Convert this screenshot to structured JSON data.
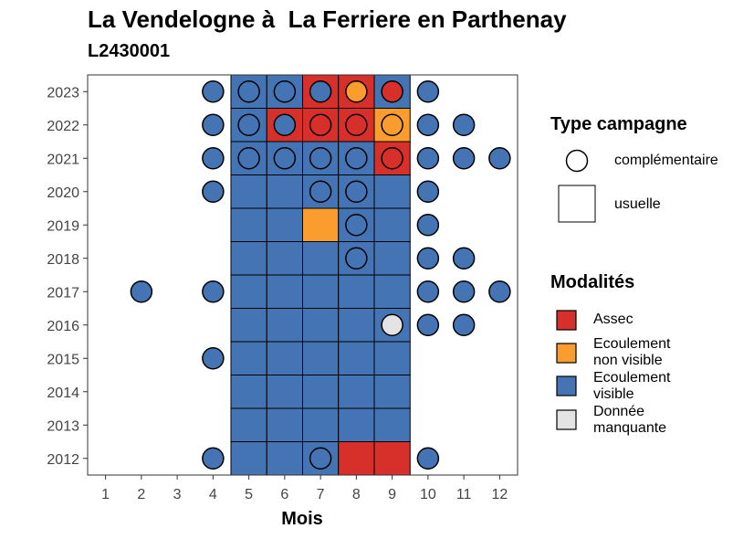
{
  "title": "La Vendelogne à  La Ferriere en Parthenay",
  "subtitle": "L2430001",
  "chart_data": {
    "type": "heatmap",
    "xlabel": "Mois",
    "ylabel": "",
    "x_ticks": [
      "1",
      "2",
      "3",
      "4",
      "5",
      "6",
      "7",
      "8",
      "9",
      "10",
      "11",
      "12"
    ],
    "y_ticks": [
      "2012",
      "2013",
      "2014",
      "2015",
      "2016",
      "2017",
      "2018",
      "2019",
      "2020",
      "2021",
      "2022",
      "2023"
    ],
    "xlim": [
      0.5,
      12.5
    ],
    "ylim": [
      2011.5,
      2023.5
    ],
    "legend_type": {
      "title": "Type campagne",
      "items": [
        {
          "key": "C",
          "label": "complémentaire",
          "shape": "circle"
        },
        {
          "key": "U",
          "label": "usuelle",
          "shape": "square"
        }
      ]
    },
    "legend_modalites": {
      "title": "Modalités",
      "items": [
        {
          "key": "A",
          "label": "Assec",
          "color": "#d7302a"
        },
        {
          "key": "N",
          "label": "Ecoulement\nnon visible",
          "color": "#fb9c2f"
        },
        {
          "key": "V",
          "label": "Ecoulement\nvisible",
          "color": "#4574b4"
        },
        {
          "key": "M",
          "label": "Donnée\nmanquante",
          "color": "#e3e3e3"
        }
      ]
    },
    "usuelle": [
      {
        "year": 2023,
        "values": {
          "5": "V",
          "6": "V",
          "7": "A",
          "8": "A",
          "9": "V"
        }
      },
      {
        "year": 2022,
        "values": {
          "5": "V",
          "6": "A",
          "7": "A",
          "8": "A",
          "9": "N"
        }
      },
      {
        "year": 2021,
        "values": {
          "5": "V",
          "6": "V",
          "7": "V",
          "8": "V",
          "9": "A"
        }
      },
      {
        "year": 2020,
        "values": {
          "5": "V",
          "6": "V",
          "7": "V",
          "8": "V",
          "9": "V"
        }
      },
      {
        "year": 2019,
        "values": {
          "5": "V",
          "6": "V",
          "7": "N",
          "8": "V",
          "9": "V"
        }
      },
      {
        "year": 2018,
        "values": {
          "5": "V",
          "6": "V",
          "7": "V",
          "8": "V",
          "9": "V"
        }
      },
      {
        "year": 2017,
        "values": {
          "5": "V",
          "6": "V",
          "7": "V",
          "8": "V",
          "9": "V"
        }
      },
      {
        "year": 2016,
        "values": {
          "5": "V",
          "6": "V",
          "7": "V",
          "8": "V",
          "9": "V"
        }
      },
      {
        "year": 2015,
        "values": {
          "5": "V",
          "6": "V",
          "7": "V",
          "8": "V",
          "9": "V"
        }
      },
      {
        "year": 2014,
        "values": {
          "5": "V",
          "6": "V",
          "7": "V",
          "8": "V",
          "9": "V"
        }
      },
      {
        "year": 2013,
        "values": {
          "5": "V",
          "6": "V",
          "7": "V",
          "8": "V",
          "9": "V"
        }
      },
      {
        "year": 2012,
        "values": {
          "5": "V",
          "6": "V",
          "7": "V",
          "8": "A",
          "9": "A"
        }
      }
    ],
    "complementaire": [
      {
        "year": 2023,
        "values": {
          "4": "V",
          "5": "V",
          "6": "V",
          "7": "V",
          "8": "N",
          "9": "A",
          "10": "V"
        }
      },
      {
        "year": 2022,
        "values": {
          "4": "V",
          "5": "V",
          "6": "V",
          "7": "A",
          "8": "A",
          "9": "N",
          "10": "V",
          "11": "V"
        }
      },
      {
        "year": 2021,
        "values": {
          "4": "V",
          "5": "V",
          "6": "V",
          "7": "V",
          "8": "V",
          "9": "A",
          "10": "V",
          "11": "V",
          "12": "V"
        }
      },
      {
        "year": 2020,
        "values": {
          "4": "V",
          "7": "V",
          "8": "V",
          "10": "V"
        }
      },
      {
        "year": 2019,
        "values": {
          "8": "V",
          "10": "V"
        }
      },
      {
        "year": 2018,
        "values": {
          "8": "V",
          "10": "V",
          "11": "V"
        }
      },
      {
        "year": 2017,
        "values": {
          "2": "V",
          "4": "V",
          "10": "V",
          "11": "V",
          "12": "V"
        }
      },
      {
        "year": 2016,
        "values": {
          "9": "M",
          "10": "V",
          "11": "V"
        }
      },
      {
        "year": 2015,
        "values": {
          "4": "V"
        }
      },
      {
        "year": 2012,
        "values": {
          "4": "V",
          "7": "V",
          "10": "V"
        }
      }
    ]
  }
}
